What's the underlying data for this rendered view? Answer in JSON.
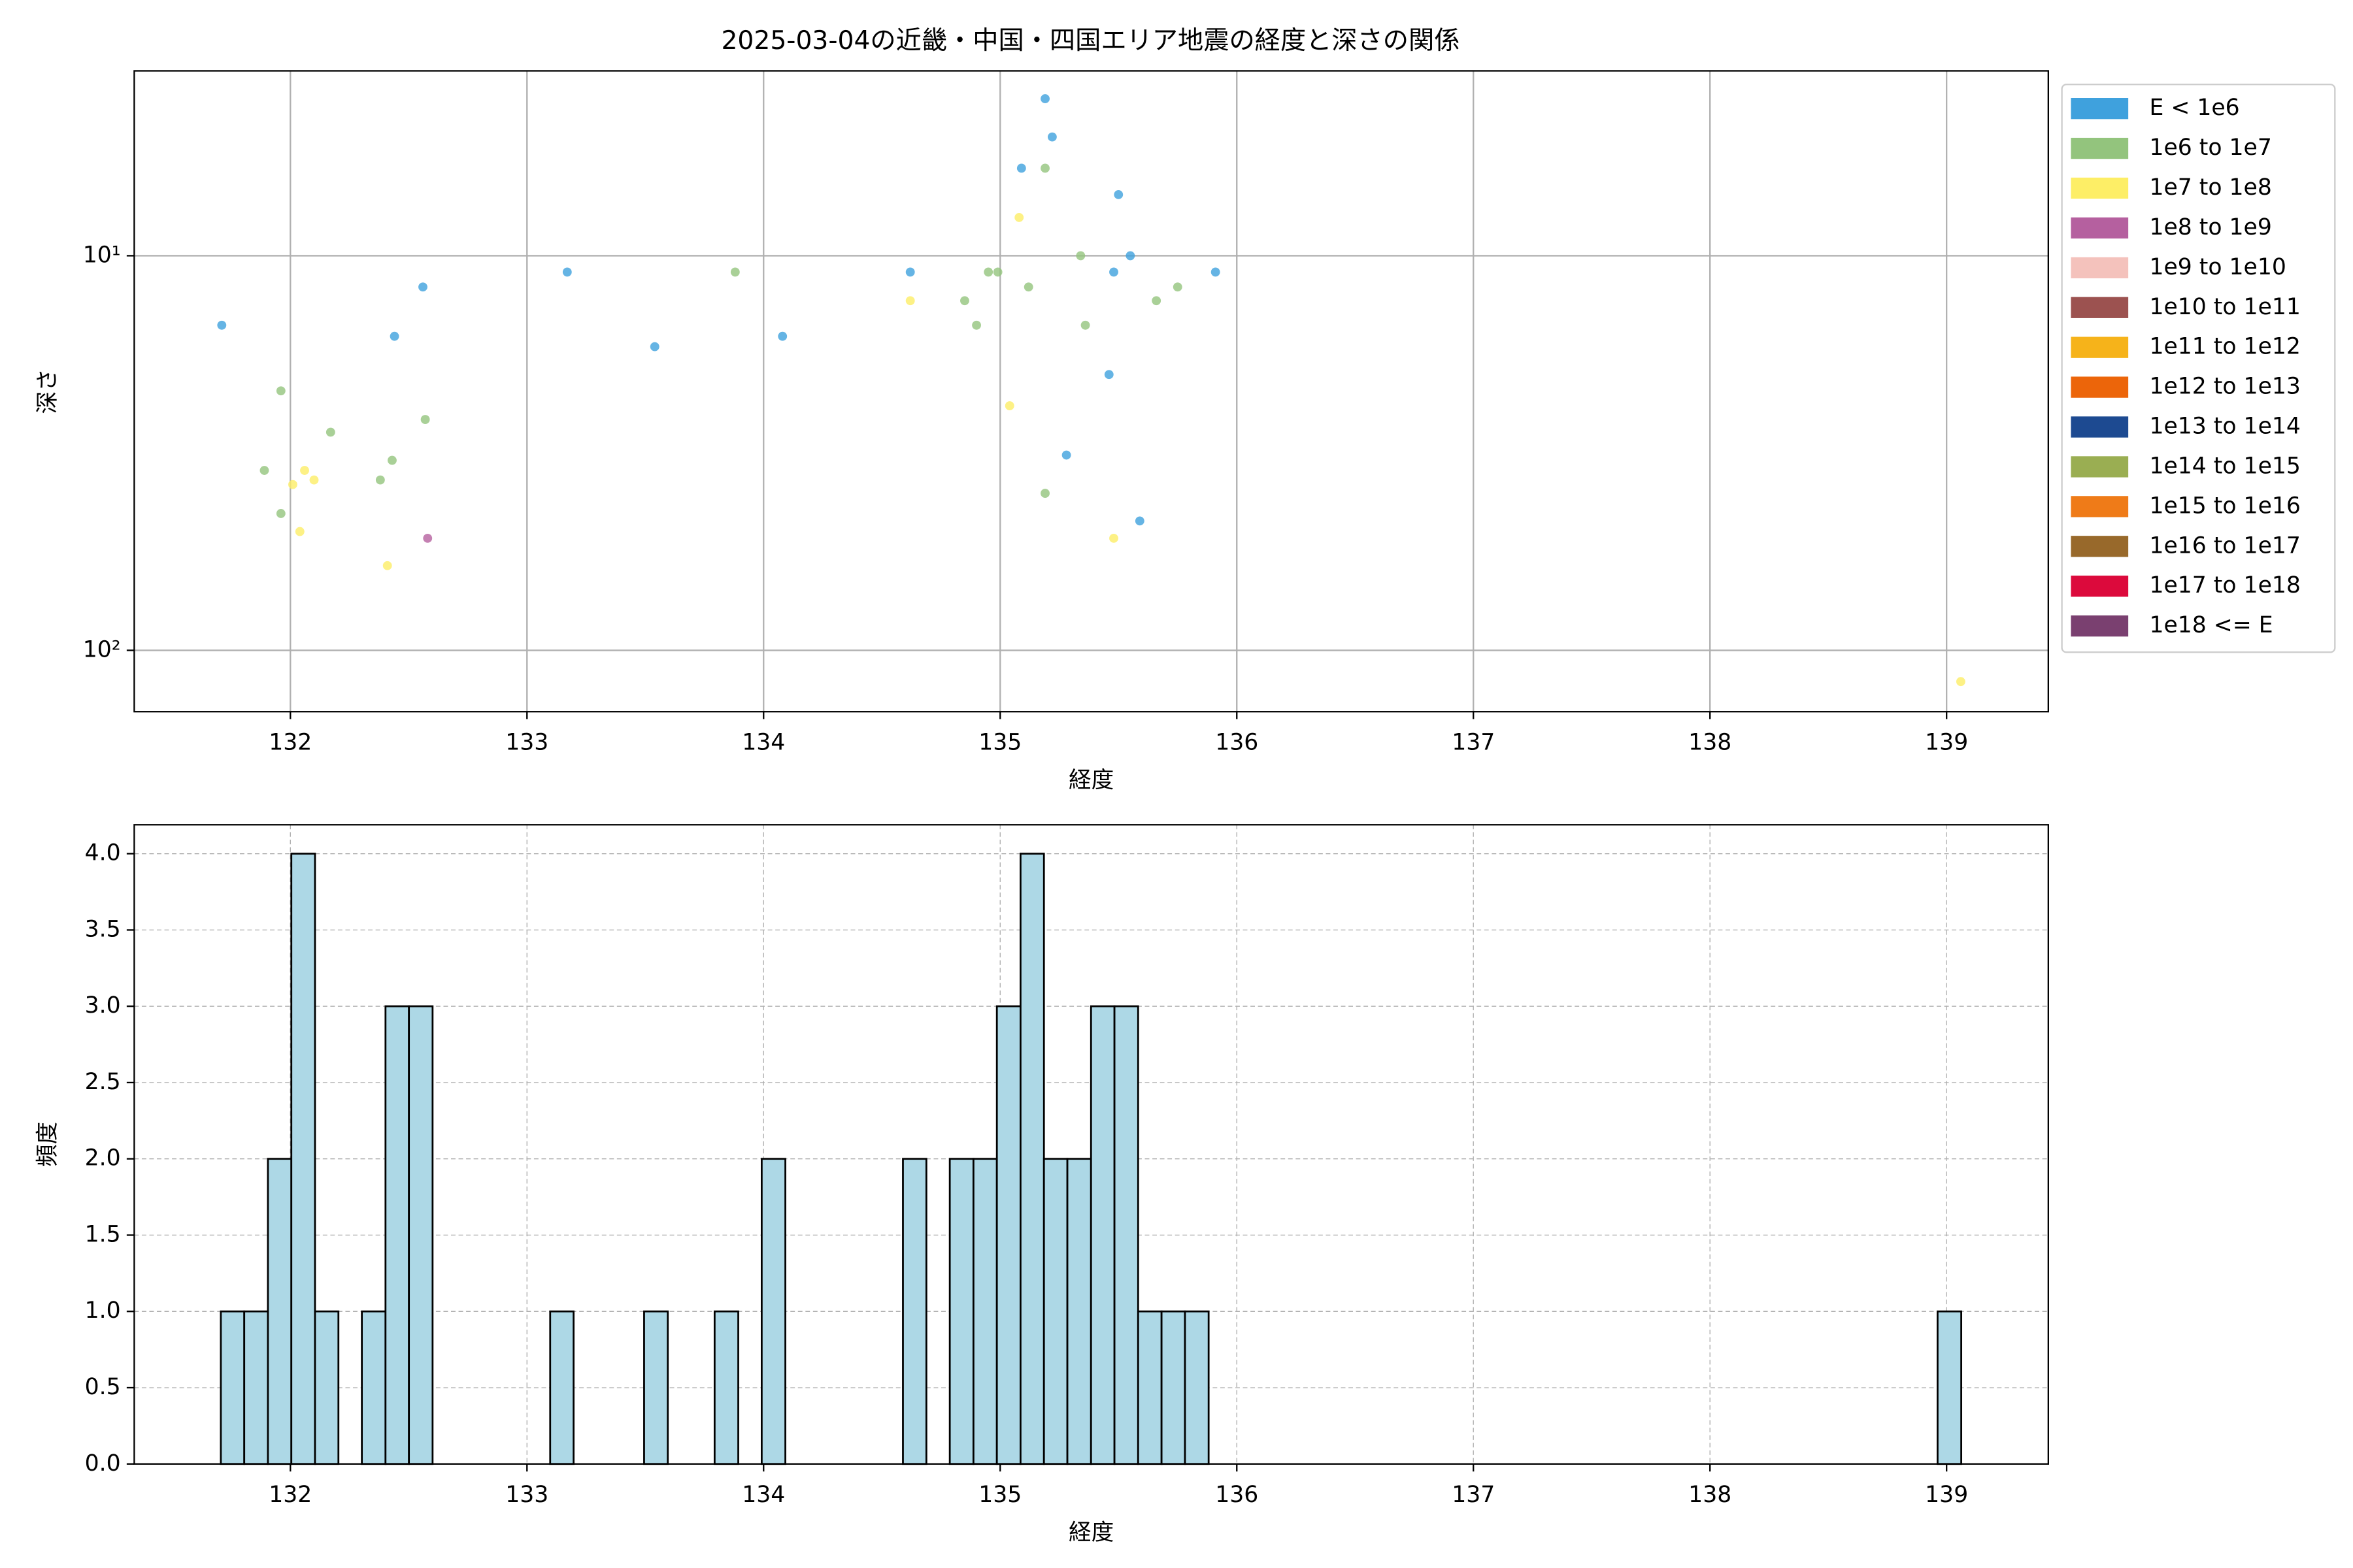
{
  "chart_data": [
    {
      "type": "scatter",
      "title": "2025-03-04の近畿・中国・四国エリア地震の経度と深さの関係",
      "xlabel": "経度",
      "ylabel": "深さ",
      "xlim": [
        131.34,
        139.43
      ],
      "xticks": [
        132,
        133,
        134,
        135,
        136,
        137,
        138,
        139
      ],
      "ylim": [
        3.4,
        143
      ],
      "y_scale": "log",
      "y_inverted": true,
      "yticks": [
        {
          "value": 10,
          "label": "10¹"
        },
        {
          "value": 100,
          "label": "10²"
        }
      ],
      "grid": true,
      "legend": "outside-right",
      "series": [
        {
          "name": "E < 1e6",
          "color": "#3fa1dd",
          "x": [
            131.71,
            135.19,
            135.22,
            135.09,
            135.5,
            135.55,
            135.48,
            135.91,
            134.62,
            133.17,
            132.56,
            132.44,
            133.54,
            134.08,
            135.46,
            135.28,
            135.59
          ],
          "values": [
            15,
            4,
            5,
            6,
            7,
            10,
            11,
            11,
            11,
            11,
            12,
            16,
            17,
            16,
            20,
            32,
            47
          ]
        },
        {
          "name": "1e6 to 1e7",
          "color": "#93c47d",
          "x": [
            135.19,
            135.34,
            133.88,
            134.95,
            134.99,
            135.12,
            135.75,
            134.85,
            135.66,
            134.9,
            135.36,
            131.96,
            132.57,
            132.17,
            132.43,
            131.89,
            132.38,
            131.96,
            135.19
          ],
          "values": [
            6,
            10,
            11,
            11,
            11,
            12,
            12,
            13,
            13,
            15,
            15,
            22,
            26,
            28,
            33,
            35,
            37,
            45,
            40
          ]
        },
        {
          "name": "1e7 to 1e8",
          "color": "#fdee66",
          "x": [
            135.08,
            134.62,
            135.04,
            132.06,
            132.1,
            132.01,
            132.04,
            135.48,
            132.41,
            139.06
          ],
          "values": [
            8,
            13,
            24,
            35,
            37,
            38,
            50,
            52,
            61,
            120
          ]
        },
        {
          "name": "1e8 to 1e9",
          "color": "#b5609f",
          "x": [
            132.58
          ],
          "values": [
            52
          ]
        },
        {
          "name": "1e9 to 1e10",
          "color": "#f4c2bc",
          "x": [],
          "values": []
        },
        {
          "name": "1e10 to 1e11",
          "color": "#9c5250",
          "x": [],
          "values": []
        },
        {
          "name": "1e11 to 1e12",
          "color": "#f6b31a",
          "x": [],
          "values": []
        },
        {
          "name": "1e12 to 1e13",
          "color": "#ec650a",
          "x": [],
          "values": []
        },
        {
          "name": "1e13 to 1e14",
          "color": "#1d4a91",
          "x": [],
          "values": []
        },
        {
          "name": "1e14 to 1e15",
          "color": "#9aae52",
          "x": [],
          "values": []
        },
        {
          "name": "1e15 to 1e16",
          "color": "#ef7b18",
          "x": [],
          "values": []
        },
        {
          "name": "1e16 to 1e17",
          "color": "#98692b",
          "x": [],
          "values": []
        },
        {
          "name": "1e17 to 1e18",
          "color": "#dc0a3c",
          "x": [],
          "values": []
        },
        {
          "name": "1e18 <= E",
          "color": "#7a4070",
          "x": [],
          "values": []
        }
      ]
    },
    {
      "type": "histogram",
      "xlabel": "経度",
      "ylabel": "頻度",
      "xlim": [
        131.34,
        139.43
      ],
      "xticks": [
        132,
        133,
        134,
        135,
        136,
        137,
        138,
        139
      ],
      "ylim": [
        0,
        4.19
      ],
      "yticks": [
        {
          "value": 0,
          "label": "0.0"
        },
        {
          "value": 0.5,
          "label": "0.5"
        },
        {
          "value": 1,
          "label": "1.0"
        },
        {
          "value": 1.5,
          "label": "1.5"
        },
        {
          "value": 2,
          "label": "2.0"
        },
        {
          "value": 2.5,
          "label": "2.5"
        },
        {
          "value": 3,
          "label": "3.0"
        },
        {
          "value": 3.5,
          "label": "3.5"
        },
        {
          "value": 4,
          "label": "4.0"
        }
      ],
      "grid": "dashed",
      "color": "#add8e6",
      "edgecolor": "#000000",
      "bins": [
        131.706,
        131.805,
        131.905,
        132.004,
        132.104,
        132.203,
        132.302,
        132.402,
        132.501,
        132.601,
        132.7,
        132.799,
        132.899,
        132.998,
        133.098,
        133.197,
        133.296,
        133.396,
        133.495,
        133.595,
        133.694,
        133.793,
        133.893,
        133.992,
        134.092,
        134.191,
        134.29,
        134.39,
        134.489,
        134.589,
        134.688,
        134.787,
        134.887,
        134.986,
        135.086,
        135.185,
        135.284,
        135.384,
        135.483,
        135.583,
        135.682,
        135.781,
        135.881,
        135.98,
        136.08,
        136.179,
        136.278,
        136.378,
        136.477,
        136.577,
        136.676,
        136.775,
        136.875,
        136.974,
        137.074,
        137.173,
        137.272,
        137.372,
        137.471,
        137.571,
        137.67,
        137.769,
        137.869,
        137.968,
        138.068,
        138.167,
        138.266,
        138.366,
        138.465,
        138.565,
        138.664,
        138.763,
        138.863,
        138.962,
        139.062
      ],
      "values": [
        1,
        1,
        2,
        4,
        1,
        0,
        1,
        3,
        3,
        0,
        0,
        0,
        0,
        0,
        1,
        0,
        0,
        0,
        1,
        0,
        0,
        1,
        0,
        2,
        0,
        0,
        0,
        0,
        0,
        2,
        0,
        2,
        2,
        3,
        4,
        2,
        2,
        3,
        3,
        1,
        1,
        1,
        0,
        0,
        0,
        0,
        0,
        0,
        0,
        0,
        0,
        0,
        0,
        0,
        0,
        0,
        0,
        0,
        0,
        0,
        0,
        0,
        0,
        0,
        0,
        0,
        0,
        0,
        0,
        0,
        0,
        0,
        0,
        1
      ]
    }
  ]
}
